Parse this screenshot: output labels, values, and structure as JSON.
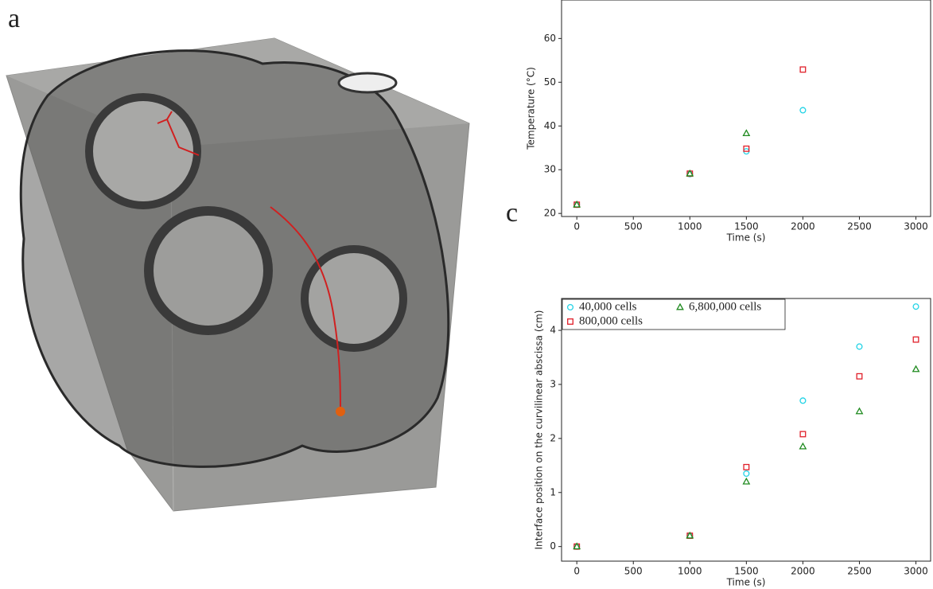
{
  "panel_labels": [
    "a",
    "c"
  ],
  "chart_data": [
    {
      "type": "scatter",
      "xlabel": "Time (s)",
      "ylabel": "Temperature (°C)",
      "x": [
        0,
        1000,
        1500,
        2000
      ],
      "series": [
        {
          "color": "#22d3e6",
          "marker": "circle",
          "values": [
            22,
            29,
            34.2,
            43.6
          ]
        },
        {
          "color": "#e0202a",
          "marker": "square",
          "values": [
            22,
            29.1,
            34.8,
            52.9
          ]
        },
        {
          "color": "#1f8a1f",
          "marker": "triangle",
          "values": [
            22,
            29.1,
            38.3,
            null
          ]
        }
      ],
      "xlim": [
        -135,
        3130
      ],
      "ylim": [
        19.3,
        68.8
      ],
      "xticks": [
        0,
        500,
        1000,
        1500,
        2000,
        2500,
        3000
      ],
      "yticks": [
        20,
        30,
        40,
        50,
        60
      ]
    },
    {
      "type": "scatter",
      "xlabel": "Time (s)",
      "ylabel": "Interface position on the curvilinear abscissa (cm)",
      "x": [
        0,
        1000,
        1500,
        2000,
        2500,
        3000
      ],
      "series": [
        {
          "name": "40,000 cells",
          "color": "#22d3e6",
          "marker": "circle",
          "values": [
            0,
            0.2,
            1.35,
            2.7,
            3.7,
            4.44
          ]
        },
        {
          "name": "800,000 cells",
          "color": "#e0202a",
          "marker": "square",
          "values": [
            0,
            0.2,
            1.47,
            2.08,
            3.15,
            3.83
          ]
        },
        {
          "name": "6,800,000 cells",
          "color": "#1f8a1f",
          "marker": "triangle",
          "values": [
            0,
            0.2,
            1.2,
            1.85,
            2.5,
            3.28
          ]
        }
      ],
      "legend": "upper left",
      "xlim": [
        -135,
        3130
      ],
      "ylim": [
        -0.27,
        4.59
      ],
      "xticks": [
        0,
        500,
        1000,
        1500,
        2000,
        2500,
        3000
      ],
      "yticks": [
        0,
        1,
        2,
        3,
        4
      ]
    }
  ]
}
